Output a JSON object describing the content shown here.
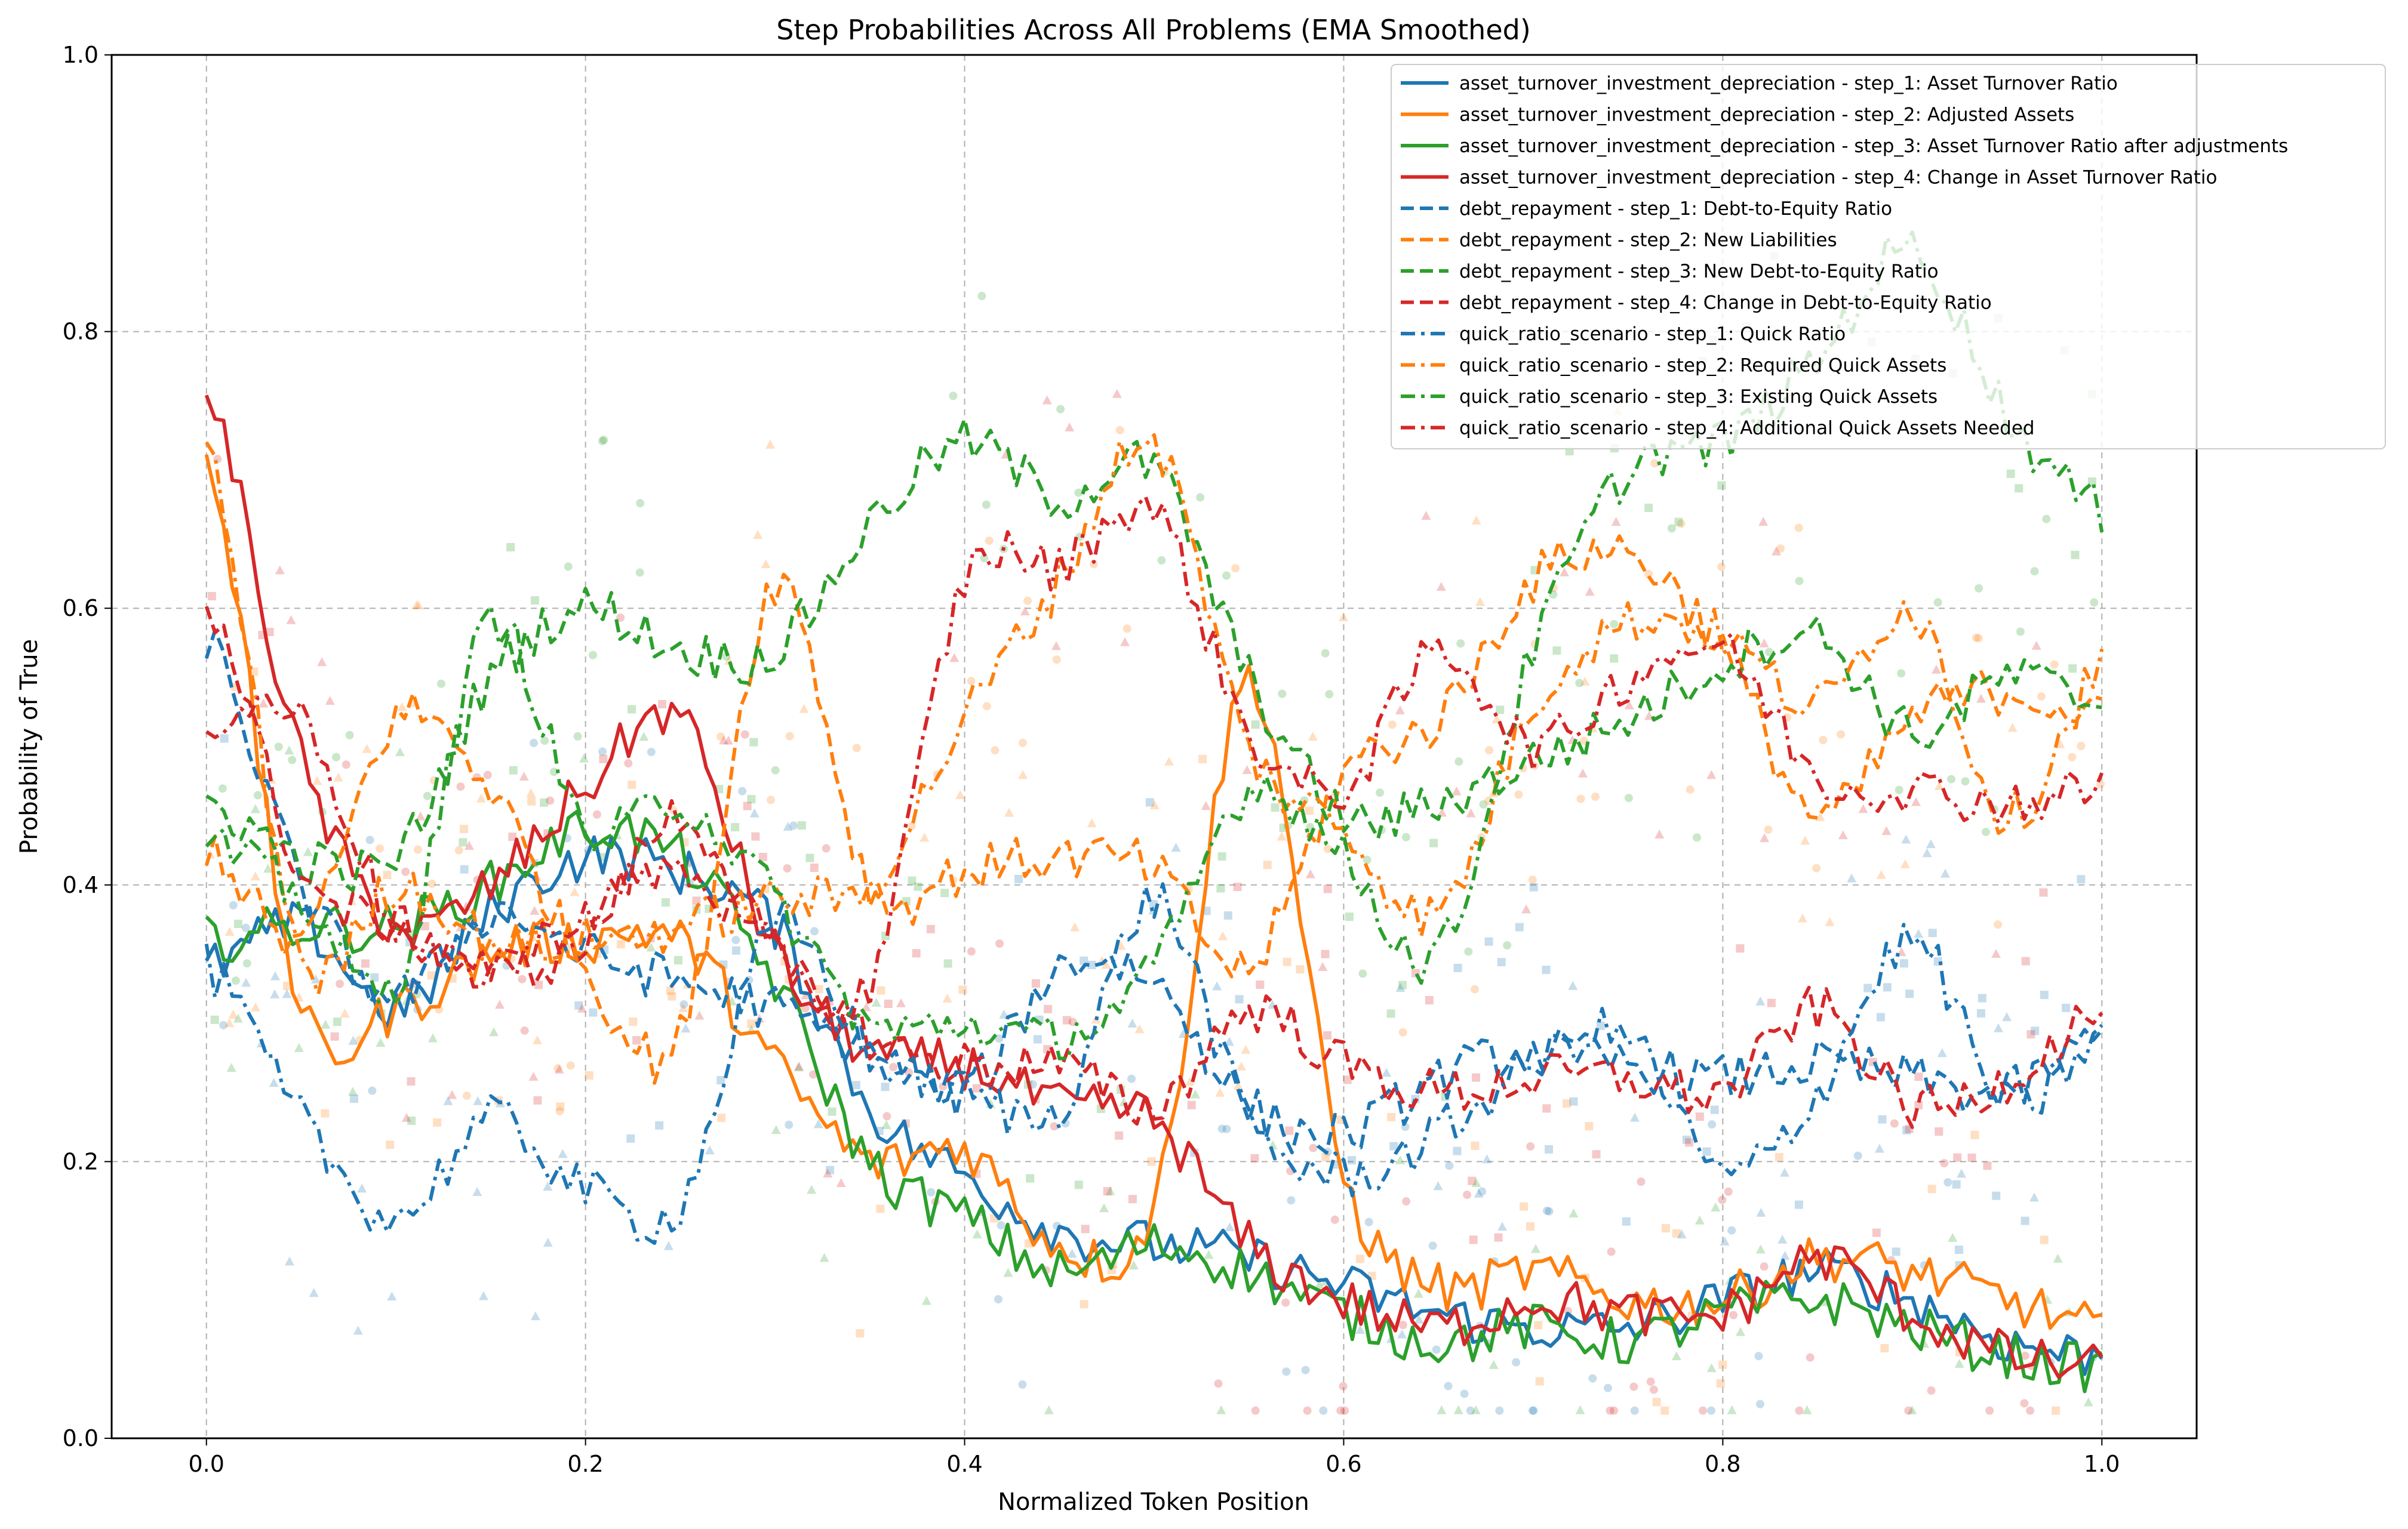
{
  "chart_data": {
    "type": "line",
    "title": "Step Probabilities Across All Problems (EMA Smoothed)",
    "xlabel": "Normalized Token Position",
    "ylabel": "Probability of True",
    "xlim": [
      -0.05,
      1.05
    ],
    "ylim": [
      0.0,
      1.0
    ],
    "xticks": [
      0.0,
      0.2,
      0.4,
      0.6,
      0.8,
      1.0
    ],
    "yticks": [
      0.0,
      0.2,
      0.4,
      0.6,
      0.8,
      1.0
    ],
    "xtick_labels": [
      "0.0",
      "0.2",
      "0.4",
      "0.6",
      "0.8",
      "1.0"
    ],
    "ytick_labels": [
      "0.0",
      "0.2",
      "0.4",
      "0.6",
      "0.8",
      "1.0"
    ],
    "grid": true,
    "legend_position": "top-right",
    "colors": {
      "blue": "#1f77b4",
      "orange": "#ff7f0e",
      "green": "#2ca02c",
      "red": "#d62728"
    },
    "x": [
      0.0,
      0.05,
      0.1,
      0.15,
      0.2,
      0.25,
      0.3,
      0.35,
      0.4,
      0.45,
      0.5,
      0.55,
      0.6,
      0.65,
      0.7,
      0.75,
      0.8,
      0.85,
      0.9,
      0.95,
      1.0
    ],
    "series": [
      {
        "name": "asset_turnover_investment_depreciation - step_1: Asset Turnover Ratio",
        "color": "#1f77b4",
        "dash": "solid",
        "values": [
          0.34,
          0.37,
          0.31,
          0.38,
          0.42,
          0.41,
          0.37,
          0.24,
          0.19,
          0.15,
          0.14,
          0.13,
          0.11,
          0.09,
          0.08,
          0.08,
          0.1,
          0.12,
          0.1,
          0.07,
          0.06
        ]
      },
      {
        "name": "asset_turnover_investment_depreciation - step_2: Adjusted Assets",
        "color": "#ff7f0e",
        "dash": "solid",
        "values": [
          0.72,
          0.31,
          0.31,
          0.35,
          0.36,
          0.36,
          0.27,
          0.2,
          0.21,
          0.14,
          0.17,
          0.55,
          0.19,
          0.11,
          0.12,
          0.1,
          0.1,
          0.13,
          0.12,
          0.1,
          0.08
        ]
      },
      {
        "name": "asset_turnover_investment_depreciation - step_3: Asset Turnover Ratio after adjustments",
        "color": "#2ca02c",
        "dash": "solid",
        "values": [
          0.36,
          0.37,
          0.37,
          0.4,
          0.44,
          0.42,
          0.33,
          0.2,
          0.16,
          0.12,
          0.14,
          0.12,
          0.09,
          0.07,
          0.08,
          0.07,
          0.09,
          0.1,
          0.08,
          0.06,
          0.05
        ]
      },
      {
        "name": "asset_turnover_investment_depreciation - step_4: Change in Asset Turnover Ratio",
        "color": "#d62728",
        "dash": "solid",
        "values": [
          0.76,
          0.49,
          0.37,
          0.4,
          0.47,
          0.52,
          0.35,
          0.28,
          0.27,
          0.24,
          0.23,
          0.14,
          0.1,
          0.08,
          0.1,
          0.09,
          0.09,
          0.13,
          0.09,
          0.06,
          0.05
        ]
      },
      {
        "name": "debt_repayment - step_1: Debt-to-Equity Ratio",
        "color": "#1f77b4",
        "dash": "dashed",
        "values": [
          0.58,
          0.4,
          0.32,
          0.38,
          0.35,
          0.33,
          0.31,
          0.28,
          0.25,
          0.34,
          0.33,
          0.24,
          0.22,
          0.26,
          0.28,
          0.27,
          0.26,
          0.27,
          0.26,
          0.25,
          0.29
        ]
      },
      {
        "name": "debt_repayment - step_2: New Liabilities",
        "color": "#ff7f0e",
        "dash": "dashed",
        "values": [
          0.43,
          0.36,
          0.52,
          0.47,
          0.34,
          0.29,
          0.62,
          0.4,
          0.41,
          0.42,
          0.41,
          0.34,
          0.48,
          0.52,
          0.62,
          0.64,
          0.57,
          0.45,
          0.52,
          0.54,
          0.52
        ]
      },
      {
        "name": "debt_repayment - step_3: New Debt-to-Equity Ratio",
        "color": "#2ca02c",
        "dash": "dashed",
        "values": [
          0.46,
          0.42,
          0.42,
          0.55,
          0.6,
          0.57,
          0.57,
          0.66,
          0.72,
          0.68,
          0.7,
          0.55,
          0.45,
          0.46,
          0.49,
          0.52,
          0.56,
          0.58,
          0.51,
          0.55,
          0.53
        ]
      },
      {
        "name": "debt_repayment - step_4: Change in Debt-to-Equity Ratio",
        "color": "#d62728",
        "dash": "dashed",
        "values": [
          0.61,
          0.41,
          0.37,
          0.34,
          0.36,
          0.45,
          0.35,
          0.29,
          0.27,
          0.27,
          0.24,
          0.31,
          0.27,
          0.25,
          0.26,
          0.26,
          0.25,
          0.31,
          0.24,
          0.26,
          0.31
        ]
      },
      {
        "name": "quick_ratio_scenario - step_1: Quick Ratio",
        "color": "#1f77b4",
        "dash": "dashdot",
        "values": [
          0.34,
          0.23,
          0.16,
          0.23,
          0.18,
          0.17,
          0.37,
          0.28,
          0.25,
          0.24,
          0.39,
          0.23,
          0.19,
          0.22,
          0.27,
          0.29,
          0.19,
          0.25,
          0.36,
          0.24,
          0.29
        ]
      },
      {
        "name": "quick_ratio_scenario - step_2: Required Quick Assets",
        "color": "#ff7f0e",
        "dash": "dashdot",
        "values": [
          0.72,
          0.35,
          0.4,
          0.36,
          0.36,
          0.37,
          0.39,
          0.4,
          0.52,
          0.62,
          0.72,
          0.5,
          0.44,
          0.38,
          0.53,
          0.59,
          0.58,
          0.53,
          0.6,
          0.45,
          0.56
        ]
      },
      {
        "name": "quick_ratio_scenario - step_3: Existing Quick Assets",
        "color": "#2ca02c",
        "dash": "dashdot",
        "values": [
          0.43,
          0.39,
          0.33,
          0.59,
          0.44,
          0.46,
          0.39,
          0.3,
          0.3,
          0.29,
          0.34,
          0.47,
          0.42,
          0.35,
          0.57,
          0.7,
          0.72,
          0.78,
          0.86,
          0.74,
          0.67
        ]
      },
      {
        "name": "quick_ratio_scenario - step_4: Additional Quick Assets Needed",
        "color": "#d62728",
        "dash": "dashdot",
        "values": [
          0.52,
          0.52,
          0.37,
          0.34,
          0.38,
          0.41,
          0.35,
          0.33,
          0.62,
          0.63,
          0.67,
          0.51,
          0.47,
          0.57,
          0.5,
          0.55,
          0.57,
          0.48,
          0.47,
          0.46,
          0.47
        ]
      }
    ]
  }
}
